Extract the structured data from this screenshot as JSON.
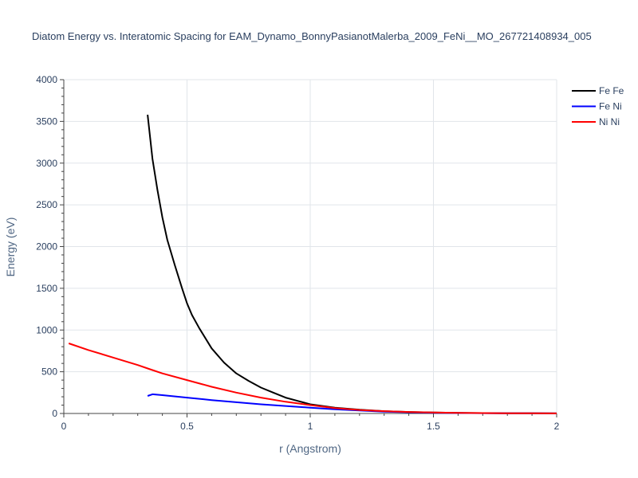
{
  "chart_data": {
    "type": "line",
    "title": "Diatom Energy vs. Interatomic Spacing for EAM_Dynamo_BonnyPasianotMalerba_2009_FeNi__MO_267721408934_005",
    "xlabel": "r (Angstrom)",
    "ylabel": "Energy (eV)",
    "xlim": [
      0,
      2
    ],
    "ylim": [
      0,
      4000
    ],
    "xticks": [
      0,
      0.5,
      1,
      1.5,
      2
    ],
    "xtick_labels": [
      "0",
      "0.5",
      "1",
      "1.5",
      "2"
    ],
    "yticks": [
      0,
      500,
      1000,
      1500,
      2000,
      2500,
      3000,
      3500,
      4000
    ],
    "ytick_labels": [
      "0",
      "500",
      "1000",
      "1500",
      "2000",
      "2500",
      "3000",
      "3500",
      "4000"
    ],
    "grid": true,
    "legend_position": "top-right",
    "series": [
      {
        "name": "Fe Fe",
        "color": "#000000",
        "x": [
          0.34,
          0.36,
          0.38,
          0.4,
          0.42,
          0.45,
          0.48,
          0.5,
          0.52,
          0.55,
          0.6,
          0.65,
          0.7,
          0.75,
          0.8,
          0.85,
          0.9,
          0.95,
          1.0,
          1.1,
          1.2,
          1.3,
          1.4,
          1.5,
          1.6,
          1.7,
          1.8,
          1.9,
          2.0
        ],
        "y": [
          3580,
          3050,
          2680,
          2350,
          2080,
          1780,
          1500,
          1320,
          1180,
          1020,
          780,
          610,
          480,
          390,
          310,
          250,
          190,
          150,
          110,
          70,
          45,
          28,
          18,
          12,
          8,
          5,
          3,
          2,
          1
        ]
      },
      {
        "name": "Fe Ni",
        "color": "#0000ff",
        "x": [
          0.34,
          0.36,
          0.4,
          0.5,
          0.6,
          0.7,
          0.8,
          0.9,
          1.0,
          1.1,
          1.2,
          1.3,
          1.4,
          1.5,
          1.6,
          1.7,
          1.8,
          1.9,
          2.0
        ],
        "y": [
          210,
          230,
          220,
          190,
          160,
          135,
          110,
          90,
          70,
          50,
          35,
          22,
          14,
          9,
          6,
          4,
          3,
          2,
          1
        ]
      },
      {
        "name": "Ni Ni",
        "color": "#ff0000",
        "x": [
          0.02,
          0.1,
          0.2,
          0.3,
          0.35,
          0.4,
          0.5,
          0.6,
          0.7,
          0.8,
          0.9,
          1.0,
          1.1,
          1.2,
          1.3,
          1.4,
          1.5,
          1.6,
          1.7,
          1.8,
          1.9,
          2.0
        ],
        "y": [
          840,
          760,
          670,
          580,
          530,
          480,
          400,
          320,
          250,
          190,
          140,
          100,
          65,
          42,
          28,
          18,
          12,
          8,
          5,
          3,
          2,
          1
        ]
      }
    ]
  }
}
